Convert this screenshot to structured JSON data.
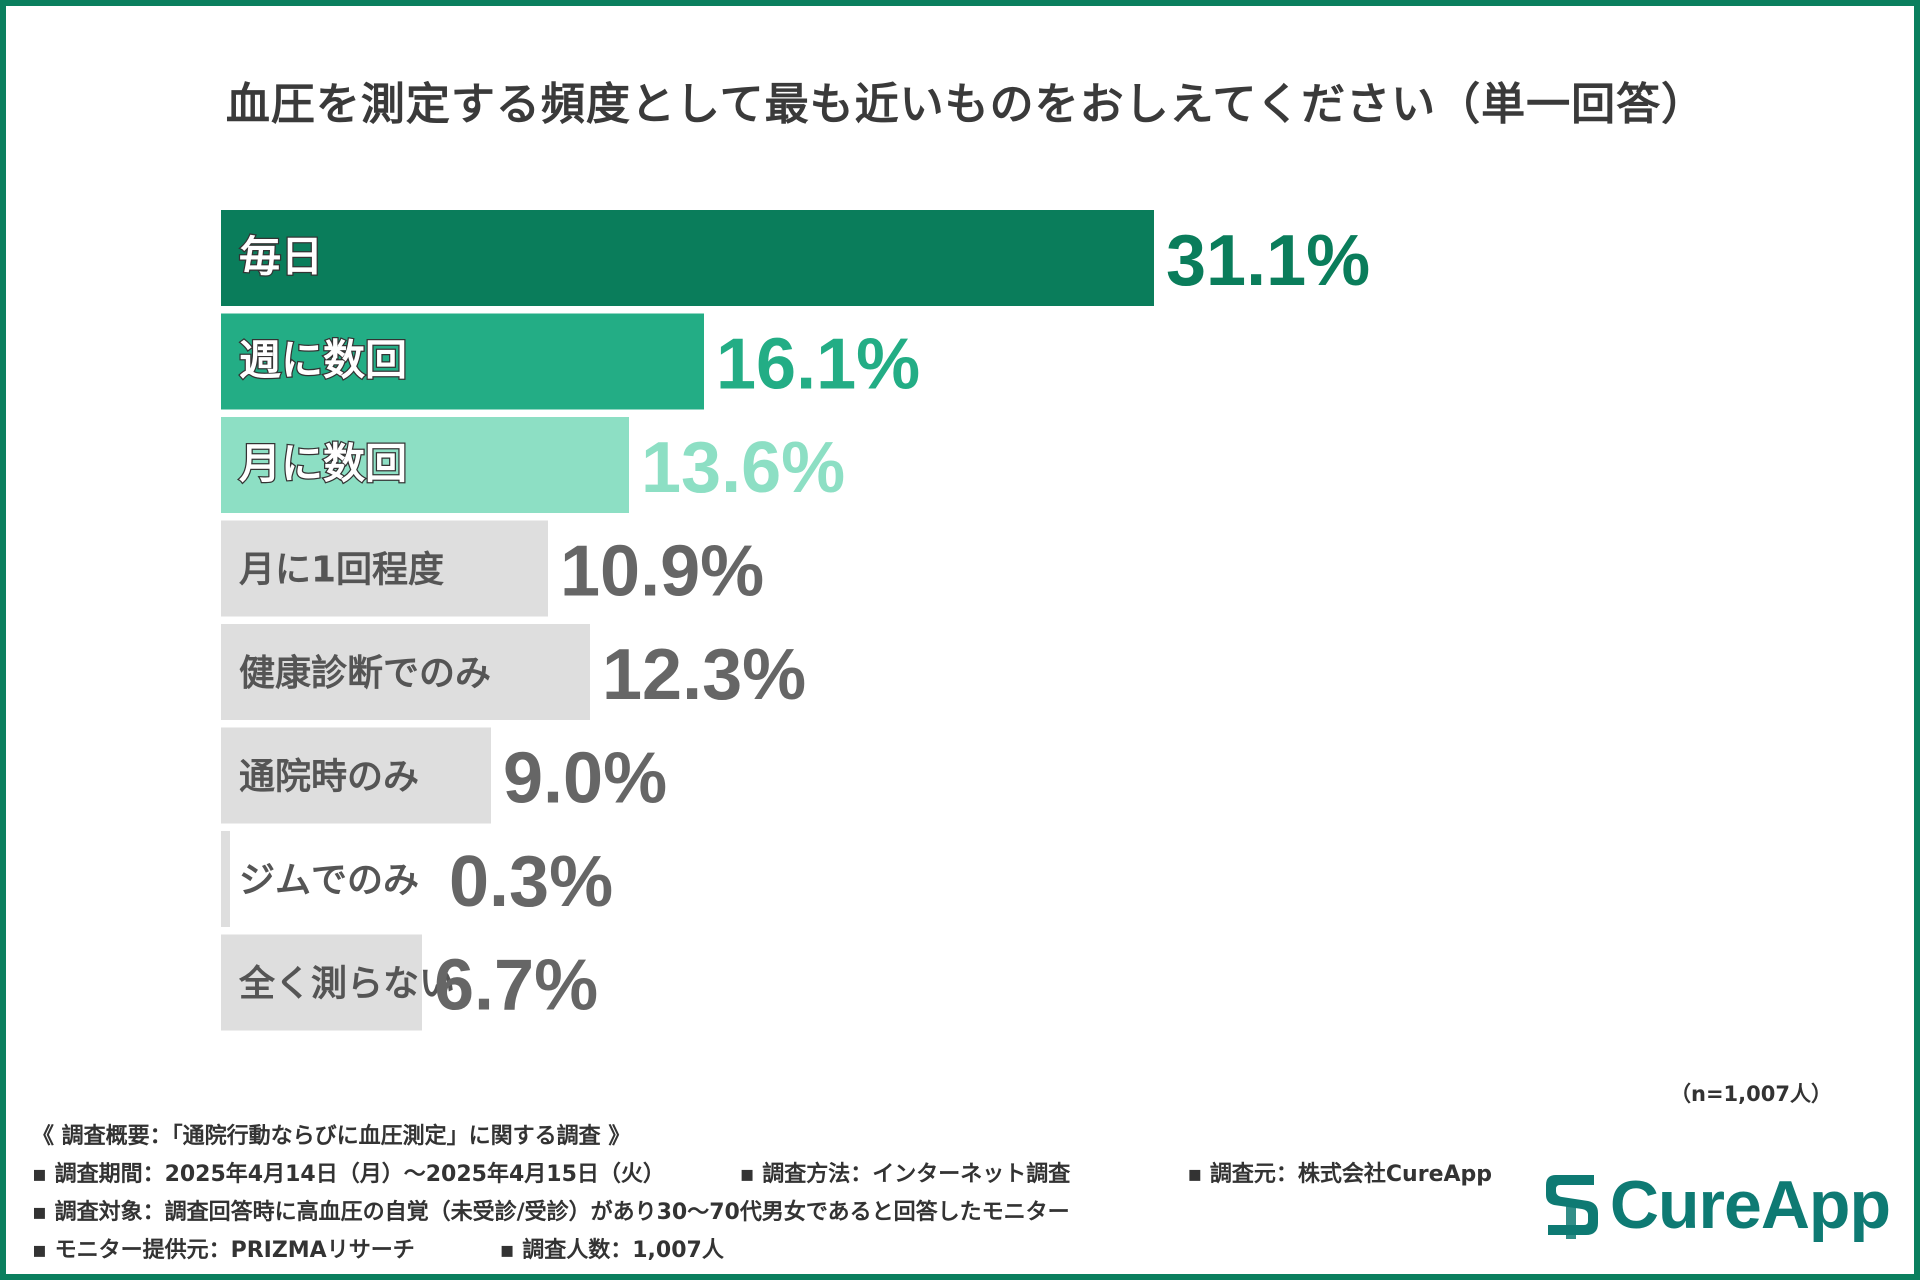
{
  "chart_data": {
    "type": "bar",
    "orientation": "horizontal",
    "title": "血圧を測定する頻度として最も近いものをおしえてください（単一回答）",
    "categories": [
      "毎日",
      "週に数回",
      "月に数回",
      "月に1回程度",
      "健康診断でのみ",
      "通院時のみ",
      "ジムでのみ",
      "全く測らない"
    ],
    "values": [
      31.1,
      16.1,
      13.6,
      10.9,
      12.3,
      9.0,
      0.3,
      6.7
    ],
    "value_labels": [
      "31.1%",
      "16.1%",
      "13.6%",
      "10.9%",
      "12.3%",
      "9.0%",
      "0.3%",
      "6.7%"
    ],
    "xlim": [
      0,
      40
    ],
    "xlabel": "",
    "ylabel": "",
    "grid": false,
    "legend": "none",
    "unit": "%"
  },
  "colors": {
    "frame": "#0b7f5e",
    "bar_top1": "#0a7d5b",
    "bar_top2": "#23ad85",
    "bar_top3": "#8ddfc4",
    "bar_other": "#dedede",
    "text_dark": "#666666",
    "brand": "#0e7a73"
  },
  "sample_size": "（n=1,007人）",
  "survey": {
    "overview": "《 調査概要：「通院行動ならびに血圧測定」に関する調査 》",
    "period": "▪ 調査期間：2025年4月14日（月）〜2025年4月15日（火）",
    "method": "▪ 調査方法：インターネット調査",
    "source": "▪ 調査元：株式会社CureApp",
    "target": "▪ 調査対象：調査回答時に高血圧の自覚（未受診/受診）があり30〜70代男女であると回答したモニター",
    "provider": "▪ モニター提供元：PRIZMAリサーチ",
    "count": "▪ 調査人数：1,007人"
  },
  "brand": {
    "name": "CureApp",
    "icon": "cureapp-logo-icon"
  }
}
